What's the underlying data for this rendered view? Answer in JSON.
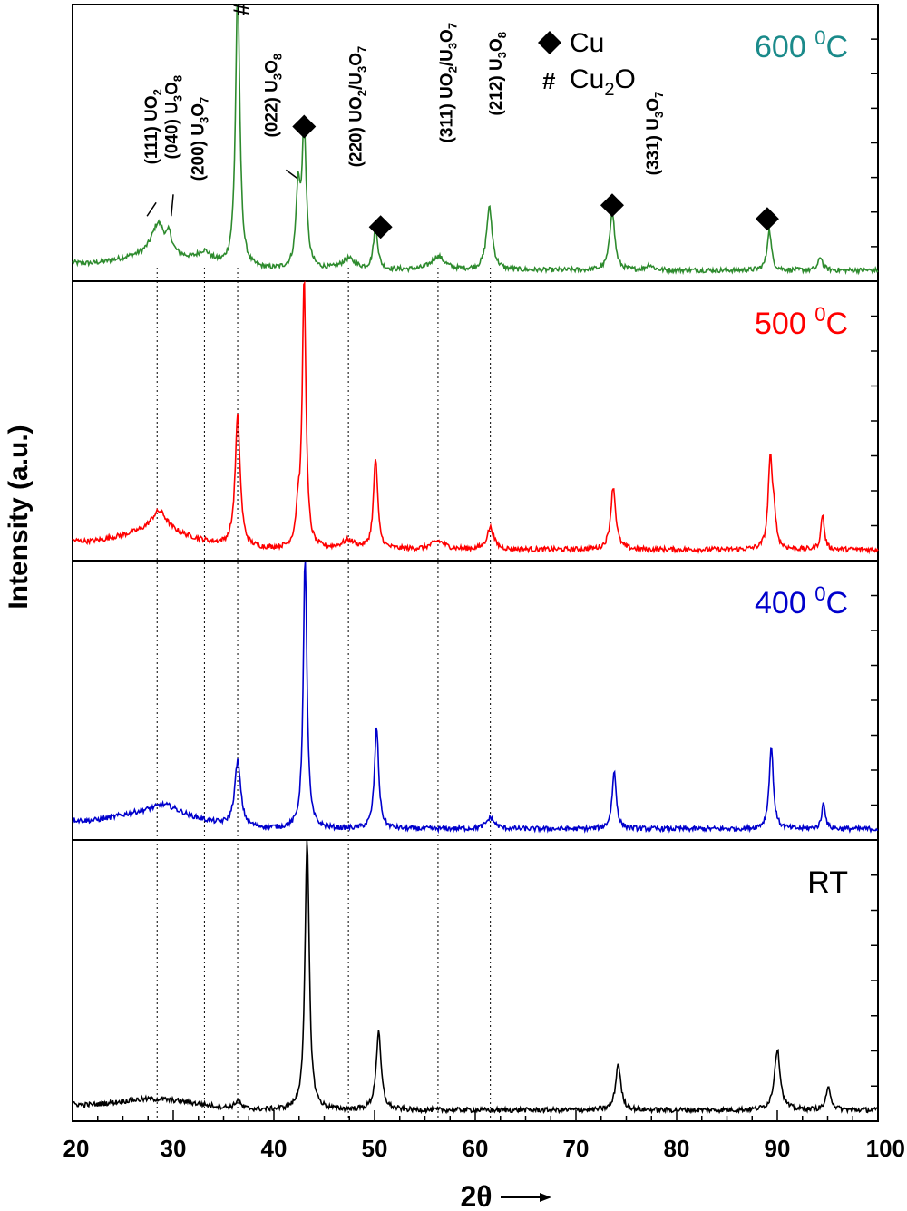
{
  "chart_data": {
    "type": "line",
    "xlabel": "2θ",
    "ylabel": "Intensity (a.u.)",
    "xlim": [
      20,
      100
    ],
    "x_ticks": [
      20,
      30,
      40,
      50,
      60,
      70,
      80,
      90,
      100
    ],
    "x_tick_labels": [
      "20",
      "30",
      "40",
      "50",
      "60",
      "70",
      "80",
      "90",
      "100"
    ],
    "grid": false,
    "panels": [
      {
        "name": "600 0C",
        "label_main": "600 ",
        "label_sup": "0",
        "label_tail": "C",
        "color": "#2e8b2e",
        "label_color": "#1a8a8a",
        "baseline": 0.03,
        "background": 0.05,
        "peaks": [
          [
            28.5,
            0.12,
            0.8
          ],
          [
            29.6,
            0.06,
            0.3
          ],
          [
            33.1,
            0.04,
            0.8
          ],
          [
            36.4,
            1.05,
            0.25
          ],
          [
            42.4,
            0.28,
            0.25
          ],
          [
            43.0,
            0.52,
            0.25
          ],
          [
            47.4,
            0.04,
            0.8
          ],
          [
            50.1,
            0.16,
            0.25
          ],
          [
            56.3,
            0.05,
            0.8
          ],
          [
            61.4,
            0.23,
            0.35
          ],
          [
            73.6,
            0.22,
            0.3
          ],
          [
            77.3,
            0.02,
            0.4
          ],
          [
            89.2,
            0.15,
            0.25
          ],
          [
            94.3,
            0.05,
            0.25
          ]
        ]
      },
      {
        "name": "500 0C",
        "label_main": "500 ",
        "label_sup": "0",
        "label_tail": "C",
        "color": "#ff0000",
        "label_color": "#ff0000",
        "baseline": 0.03,
        "background": 0.06,
        "peaks": [
          [
            28.6,
            0.08,
            1.0
          ],
          [
            36.4,
            0.48,
            0.3
          ],
          [
            42.4,
            0.12,
            0.25
          ],
          [
            43.0,
            0.98,
            0.22
          ],
          [
            47.4,
            0.03,
            0.8
          ],
          [
            50.1,
            0.33,
            0.25
          ],
          [
            56.3,
            0.03,
            0.8
          ],
          [
            61.5,
            0.08,
            0.4
          ],
          [
            73.7,
            0.23,
            0.3
          ],
          [
            89.3,
            0.33,
            0.25
          ],
          [
            89.7,
            0.1,
            0.2
          ],
          [
            94.5,
            0.13,
            0.2
          ]
        ]
      },
      {
        "name": "400 0C",
        "label_main": "400 ",
        "label_sup": "0",
        "label_tail": "C",
        "color": "#0000cc",
        "label_color": "#0000cc",
        "baseline": 0.03,
        "background": 0.06,
        "peaks": [
          [
            29.2,
            0.03,
            1.5
          ],
          [
            36.4,
            0.24,
            0.35
          ],
          [
            43.1,
            1.0,
            0.22
          ],
          [
            50.2,
            0.37,
            0.25
          ],
          [
            61.5,
            0.04,
            0.5
          ],
          [
            73.8,
            0.21,
            0.25
          ],
          [
            89.4,
            0.3,
            0.25
          ],
          [
            94.6,
            0.1,
            0.2
          ]
        ]
      },
      {
        "name": "RT",
        "label_main": "RT",
        "label_sup": "",
        "label_tail": "",
        "color": "#000000",
        "label_color": "#000000",
        "baseline": 0.03,
        "background": 0.04,
        "peaks": [
          [
            36.4,
            0.03,
            0.3
          ],
          [
            43.3,
            0.98,
            0.25
          ],
          [
            50.4,
            0.28,
            0.3
          ],
          [
            74.2,
            0.17,
            0.3
          ],
          [
            90.0,
            0.22,
            0.35
          ],
          [
            95.1,
            0.08,
            0.3
          ]
        ]
      }
    ],
    "reference_lines_x": [
      28.4,
      33.1,
      36.4,
      47.4,
      56.3,
      61.5
    ],
    "peak_labels": [
      "(111) UO2",
      "(040) U3O8",
      "(200) U3O7",
      "(022) U3O8",
      "(220) UO2/U3O7",
      "(311) UO2/U3O7",
      "(212) U3O8",
      "(331) U3O7"
    ],
    "peak_label_items": [
      {
        "x": 28.4,
        "y": 0.42,
        "parts": [
          [
            "(111) UO",
            ""
          ],
          [
            "2",
            "sub"
          ]
        ]
      },
      {
        "x": 30.4,
        "y": 0.44,
        "parts": [
          [
            "(040) U",
            ""
          ],
          [
            "3",
            "sub"
          ],
          [
            "O",
            ""
          ],
          [
            "8",
            "sub"
          ]
        ]
      },
      {
        "x": 33.0,
        "y": 0.36,
        "parts": [
          [
            "(200) U",
            ""
          ],
          [
            "3",
            "sub"
          ],
          [
            "O",
            ""
          ],
          [
            "7",
            "sub"
          ]
        ]
      },
      {
        "x": 40.3,
        "y": 0.52,
        "parts": [
          [
            "(022) U",
            ""
          ],
          [
            "3",
            "sub"
          ],
          [
            "O",
            ""
          ],
          [
            "8",
            "sub"
          ]
        ]
      },
      {
        "x": 48.7,
        "y": 0.41,
        "parts": [
          [
            "(220) UO",
            ""
          ],
          [
            "2",
            "sub"
          ],
          [
            "/U",
            ""
          ],
          [
            "3",
            "sub"
          ],
          [
            "O",
            ""
          ],
          [
            "7",
            "sub"
          ]
        ]
      },
      {
        "x": 57.7,
        "y": 0.5,
        "parts": [
          [
            "(311) UO",
            ""
          ],
          [
            "2",
            "sub"
          ],
          [
            "/U",
            ""
          ],
          [
            "3",
            "sub"
          ],
          [
            "O",
            ""
          ],
          [
            "7",
            "sub"
          ]
        ]
      },
      {
        "x": 62.6,
        "y": 0.6,
        "parts": [
          [
            "(212) U",
            ""
          ],
          [
            "3",
            "sub"
          ],
          [
            "O",
            ""
          ],
          [
            "8",
            "sub"
          ]
        ]
      },
      {
        "x": 78.2,
        "y": 0.38,
        "parts": [
          [
            "(331) U",
            ""
          ],
          [
            "3",
            "sub"
          ],
          [
            "O",
            ""
          ],
          [
            "7",
            "sub"
          ]
        ]
      }
    ],
    "markers": {
      "cu": [
        [
          43.0,
          0.56
        ],
        [
          50.6,
          0.19
        ],
        [
          73.6,
          0.27
        ],
        [
          89.0,
          0.22
        ]
      ],
      "cu2o": [
        [
          38.2,
          0.97
        ]
      ]
    },
    "legend": [
      {
        "symbol": "◆",
        "label": "Cu",
        "sub": ""
      },
      {
        "symbol": "#",
        "label": "Cu",
        "sub": "2",
        "tail": "O"
      }
    ],
    "hash_symbol": "#"
  }
}
